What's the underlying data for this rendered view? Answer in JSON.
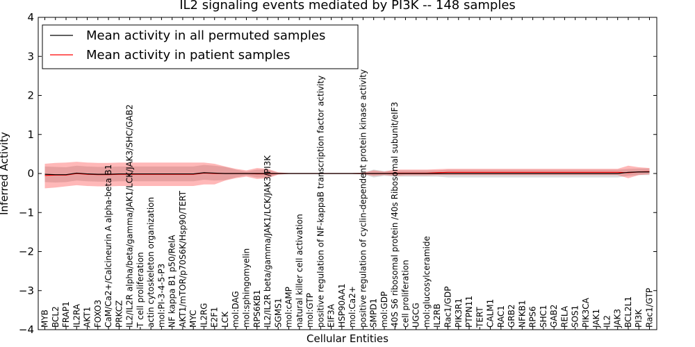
{
  "chart_data": {
    "type": "line",
    "title": "IL2 signaling events mediated by PI3K -- 148 samples",
    "xlabel": "Cellular Entities",
    "ylabel": "Inferred Activity",
    "ylim": [
      -4,
      4
    ],
    "yticks": [
      -4,
      -3,
      -2,
      -1,
      0,
      1,
      2,
      3,
      4
    ],
    "legend_position": "top-left",
    "categories": [
      "MYB",
      "BCL2",
      "FRAP1",
      "IL2RA",
      "AKT1",
      "FOXO3",
      "CaM/Ca2+/Calcineurin A alpha-beta B1",
      "PRKCZ",
      "IL2/IL2R alpha/beta/gamma/JAK1/LCK/JAK3/SHC/GAB2",
      "T cell proliferation",
      "actin cytoskeleton organization",
      "mol:PI-3-4-5-P3",
      "NF kappa B1 p50/RelA",
      "AKT1/mTOR/p70S6K/Hsp90/TERT",
      "MYC",
      "IL2RG",
      "E2F1",
      "LCK",
      "mol:DAG",
      "mol:sphingomyelin",
      "RPS6KB1",
      "IL2/IL2R beta/gamma/JAK1/LCK/JAK3/PI3K",
      "SGMS1",
      "mol:cAMP",
      "natural killer cell activation",
      "mol:GTP",
      "positive regulation of NF-kappaB transcription factor activity",
      "EIF3A",
      "HSP90AA1",
      "mol:Ca2+",
      "positive regulation of cyclin-dependent protein kinase activity",
      "SMPD1",
      "mol:GDP",
      "40S S6 ribosomal protein /40s Ribosomal subunit/eIF3",
      "cell proliferation",
      "UGCG",
      "mol:glucosylceramide",
      "IL2RB",
      "Rac1/GDP",
      "PIK3R1",
      "PTPN11",
      "TERT",
      "CALM1",
      "RAC1",
      "GRB2",
      "NFKB1",
      "RPS6",
      "SHC1",
      "GAB2",
      "RELA",
      "SOS1",
      "PIK3CA",
      "JAK1",
      "IL2",
      "JAK3",
      "BCL2L1",
      "PI3K",
      "Rac1/GTP"
    ],
    "series": [
      {
        "name": "Mean activity in all permuted samples",
        "color": "#000000",
        "values": [
          -0.02,
          -0.03,
          -0.03,
          0.01,
          -0.01,
          -0.02,
          -0.02,
          -0.01,
          -0.01,
          -0.01,
          -0.01,
          -0.01,
          -0.01,
          -0.01,
          -0.01,
          0.02,
          0.01,
          0.0,
          0.0,
          0.0,
          0.0,
          0.0,
          0.0,
          0.0,
          0.0,
          0.0,
          0.0,
          0.0,
          0.0,
          0.0,
          0.0,
          0.0,
          0.0,
          0.0,
          0.0,
          0.0,
          0.0,
          0.0,
          0.0,
          0.0,
          0.0,
          0.0,
          0.0,
          0.0,
          0.0,
          0.0,
          0.0,
          0.0,
          0.0,
          0.0,
          0.0,
          0.0,
          0.0,
          0.0,
          0.0,
          0.03,
          0.04,
          0.04
        ],
        "band_upper": [
          0.18,
          0.17,
          0.16,
          0.2,
          0.18,
          0.17,
          0.17,
          0.18,
          0.18,
          0.18,
          0.18,
          0.18,
          0.18,
          0.18,
          0.18,
          0.22,
          0.2,
          0.17,
          0.1,
          0.05,
          0.1,
          0.1,
          0.02,
          0.01,
          0.01,
          0.01,
          0.01,
          0.01,
          0.01,
          0.01,
          0.02,
          0.1,
          0.06,
          0.08,
          0.08,
          0.08,
          0.08,
          0.08,
          0.1,
          0.1,
          0.1,
          0.1,
          0.1,
          0.1,
          0.1,
          0.1,
          0.1,
          0.1,
          0.1,
          0.1,
          0.1,
          0.1,
          0.1,
          0.1,
          0.1,
          0.12,
          0.13,
          0.13
        ],
        "band_lower": [
          -0.22,
          -0.23,
          -0.22,
          -0.18,
          -0.2,
          -0.21,
          -0.21,
          -0.2,
          -0.2,
          -0.2,
          -0.2,
          -0.2,
          -0.2,
          -0.2,
          -0.2,
          -0.16,
          -0.18,
          -0.17,
          -0.1,
          -0.05,
          -0.1,
          -0.1,
          -0.02,
          -0.01,
          -0.01,
          -0.01,
          -0.01,
          -0.01,
          -0.01,
          -0.01,
          -0.02,
          -0.1,
          -0.06,
          -0.08,
          -0.08,
          -0.08,
          -0.08,
          -0.08,
          -0.1,
          -0.1,
          -0.1,
          -0.1,
          -0.1,
          -0.1,
          -0.1,
          -0.1,
          -0.1,
          -0.1,
          -0.1,
          -0.1,
          -0.1,
          -0.1,
          -0.1,
          -0.1,
          -0.1,
          -0.06,
          -0.04,
          -0.04
        ]
      },
      {
        "name": "Mean activity in patient samples",
        "color": "#ff0000",
        "values": [
          -0.05,
          -0.04,
          -0.04,
          0.0,
          -0.02,
          -0.03,
          -0.03,
          -0.02,
          -0.02,
          -0.02,
          -0.02,
          -0.02,
          -0.02,
          -0.02,
          -0.02,
          0.01,
          0.0,
          0.0,
          0.0,
          0.0,
          -0.01,
          -0.01,
          0.0,
          0.0,
          0.0,
          0.0,
          0.0,
          0.0,
          0.0,
          0.0,
          0.0,
          0.0,
          0.0,
          0.01,
          0.01,
          0.01,
          0.01,
          0.02,
          0.03,
          0.03,
          0.03,
          0.03,
          0.03,
          0.03,
          0.03,
          0.03,
          0.03,
          0.03,
          0.03,
          0.03,
          0.03,
          0.03,
          0.03,
          0.03,
          0.03,
          0.02,
          0.04,
          0.05
        ],
        "band_upper": [
          0.25,
          0.27,
          0.28,
          0.3,
          0.28,
          0.27,
          0.27,
          0.28,
          0.28,
          0.28,
          0.28,
          0.28,
          0.28,
          0.28,
          0.28,
          0.28,
          0.25,
          0.18,
          0.12,
          0.08,
          0.14,
          0.12,
          0.03,
          0.01,
          0.01,
          0.01,
          0.01,
          0.01,
          0.01,
          0.01,
          0.02,
          0.08,
          0.05,
          0.1,
          0.1,
          0.1,
          0.1,
          0.11,
          0.12,
          0.12,
          0.12,
          0.12,
          0.12,
          0.12,
          0.12,
          0.12,
          0.12,
          0.12,
          0.12,
          0.12,
          0.12,
          0.12,
          0.12,
          0.12,
          0.12,
          0.2,
          0.16,
          0.14
        ],
        "band_lower": [
          -0.38,
          -0.36,
          -0.33,
          -0.3,
          -0.32,
          -0.33,
          -0.33,
          -0.32,
          -0.32,
          -0.32,
          -0.32,
          -0.32,
          -0.32,
          -0.32,
          -0.32,
          -0.28,
          -0.28,
          -0.18,
          -0.12,
          -0.08,
          -0.14,
          -0.12,
          -0.03,
          -0.01,
          -0.01,
          -0.01,
          -0.01,
          -0.01,
          -0.01,
          -0.01,
          -0.02,
          -0.06,
          -0.04,
          -0.06,
          -0.05,
          -0.05,
          -0.05,
          -0.04,
          -0.04,
          -0.04,
          -0.04,
          -0.04,
          -0.04,
          -0.04,
          -0.04,
          -0.04,
          -0.04,
          -0.04,
          -0.04,
          -0.04,
          -0.04,
          -0.04,
          -0.04,
          -0.04,
          -0.04,
          -0.12,
          -0.04,
          -0.02
        ]
      }
    ]
  }
}
